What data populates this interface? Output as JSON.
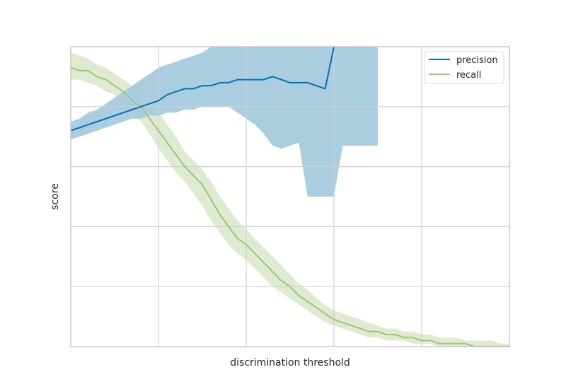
{
  "colors": {
    "precision": "#0072b2",
    "precision_band": "#a5cbde",
    "recall": "#9cc67a",
    "recall_band": "#dfead0",
    "grid": "#d0d0d0",
    "frame": "#c8c8c8"
  },
  "chart_data": {
    "type": "line",
    "xlabel": "discrimination threshold",
    "ylabel": "score",
    "xlim": [
      0.0,
      1.0
    ],
    "ylim": [
      0.0,
      1.0
    ],
    "grid": true,
    "legend_position": "top-right",
    "x": [
      0.0,
      0.02,
      0.04,
      0.06,
      0.08,
      0.1,
      0.12,
      0.14,
      0.16,
      0.18,
      0.2,
      0.22,
      0.24,
      0.26,
      0.28,
      0.3,
      0.32,
      0.34,
      0.36,
      0.38,
      0.4,
      0.42,
      0.44,
      0.46,
      0.48,
      0.5,
      0.52,
      0.54,
      0.56,
      0.58,
      0.6,
      0.62,
      0.64,
      0.66,
      0.68,
      0.7,
      0.72,
      0.74,
      0.76,
      0.78,
      0.8,
      0.82,
      0.84,
      0.86,
      0.88,
      0.9,
      0.92,
      0.94,
      0.96,
      0.98,
      1.0
    ],
    "series": [
      {
        "name": "precision",
        "values": [
          0.72,
          0.73,
          0.74,
          0.75,
          0.76,
          0.77,
          0.78,
          0.79,
          0.8,
          0.81,
          0.82,
          0.84,
          0.85,
          0.86,
          0.86,
          0.87,
          0.87,
          0.88,
          0.88,
          0.89,
          0.89,
          0.89,
          0.89,
          0.9,
          0.89,
          0.88,
          0.88,
          0.88,
          0.87,
          0.86,
          1.0,
          null,
          null,
          null,
          null,
          null,
          null,
          null,
          null,
          null,
          null,
          null,
          null,
          null,
          null,
          null,
          null,
          null,
          null,
          null,
          null
        ],
        "lower": [
          0.69,
          0.7,
          0.71,
          0.72,
          0.73,
          0.74,
          0.75,
          0.76,
          0.76,
          0.77,
          0.77,
          0.78,
          0.78,
          0.79,
          0.79,
          0.8,
          0.8,
          0.8,
          0.8,
          0.78,
          0.76,
          0.74,
          0.71,
          0.67,
          0.66,
          0.67,
          0.68,
          0.5,
          0.5,
          0.5,
          0.5,
          0.67,
          0.67,
          0.67,
          0.67,
          0.67,
          null,
          null,
          null,
          null,
          null,
          null,
          null,
          null,
          null,
          null,
          null,
          null,
          null,
          null,
          null
        ],
        "upper": [
          0.75,
          0.76,
          0.78,
          0.79,
          0.81,
          0.83,
          0.85,
          0.87,
          0.89,
          0.91,
          0.93,
          0.94,
          0.95,
          0.96,
          0.97,
          0.98,
          1.0,
          1.0,
          1.0,
          1.0,
          1.0,
          1.0,
          1.0,
          1.0,
          1.0,
          1.0,
          1.0,
          1.0,
          1.0,
          1.0,
          1.0,
          1.0,
          1.0,
          1.0,
          1.0,
          1.0,
          null,
          null,
          null,
          null,
          null,
          null,
          null,
          null,
          null,
          null,
          null,
          null,
          null,
          null,
          null
        ]
      },
      {
        "name": "recall",
        "values": [
          0.93,
          0.92,
          0.92,
          0.9,
          0.89,
          0.87,
          0.85,
          0.82,
          0.8,
          0.76,
          0.72,
          0.68,
          0.64,
          0.6,
          0.57,
          0.54,
          0.49,
          0.44,
          0.4,
          0.36,
          0.34,
          0.31,
          0.28,
          0.25,
          0.22,
          0.2,
          0.17,
          0.15,
          0.13,
          0.11,
          0.09,
          0.08,
          0.07,
          0.06,
          0.05,
          0.05,
          0.04,
          0.04,
          0.03,
          0.03,
          0.02,
          0.02,
          0.01,
          0.01,
          0.01,
          0.01,
          0.0,
          0.0,
          0.0,
          0.0,
          0.0
        ],
        "lower": [
          0.89,
          0.89,
          0.88,
          0.87,
          0.85,
          0.84,
          0.81,
          0.78,
          0.75,
          0.71,
          0.66,
          0.62,
          0.58,
          0.55,
          0.51,
          0.47,
          0.42,
          0.38,
          0.34,
          0.31,
          0.29,
          0.26,
          0.23,
          0.2,
          0.18,
          0.16,
          0.14,
          0.12,
          0.1,
          0.08,
          0.07,
          0.06,
          0.05,
          0.04,
          0.03,
          0.03,
          0.02,
          0.02,
          0.02,
          0.01,
          0.01,
          0.01,
          0.0,
          0.0,
          0.0,
          0.0,
          0.0,
          0.0,
          0.0,
          0.0,
          0.0
        ],
        "upper": [
          0.98,
          0.97,
          0.96,
          0.94,
          0.93,
          0.91,
          0.89,
          0.87,
          0.85,
          0.81,
          0.78,
          0.74,
          0.7,
          0.65,
          0.62,
          0.59,
          0.55,
          0.5,
          0.46,
          0.42,
          0.39,
          0.36,
          0.33,
          0.3,
          0.27,
          0.24,
          0.21,
          0.19,
          0.16,
          0.14,
          0.12,
          0.11,
          0.1,
          0.09,
          0.08,
          0.07,
          0.06,
          0.06,
          0.05,
          0.05,
          0.04,
          0.04,
          0.03,
          0.03,
          0.03,
          0.02,
          0.02,
          0.02,
          0.02,
          0.01,
          0.01
        ]
      }
    ]
  }
}
